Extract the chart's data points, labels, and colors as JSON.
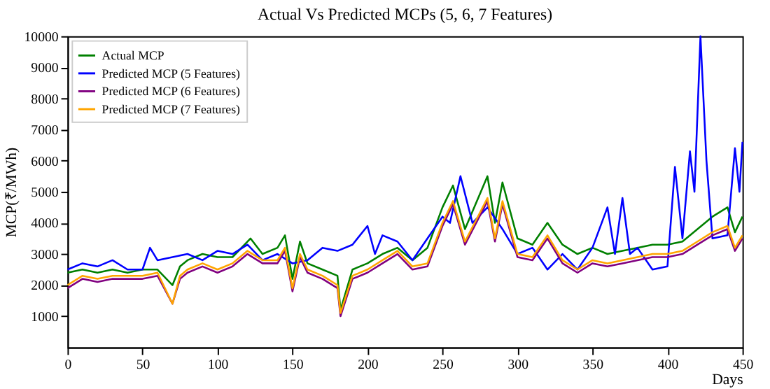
{
  "chart_data": {
    "type": "line",
    "title": "Actual Vs Predicted MCPs (5, 6, 7 Features)",
    "xlabel": "Days",
    "ylabel": "MCP(₹/MWh)",
    "xlim": [
      0,
      450
    ],
    "xticks": [
      0,
      50,
      100,
      150,
      200,
      250,
      300,
      350,
      400,
      450
    ],
    "ylim": [
      0,
      10000
    ],
    "yticks": [
      1000,
      2000,
      3000,
      4000,
      5000,
      6000,
      7000,
      8000,
      9000,
      10000
    ],
    "grid": false,
    "legend": "top left",
    "marker": "none",
    "line_style": "solid",
    "series": [
      {
        "name": "Actual MCP",
        "color": "#008000",
        "x": [
          0,
          10,
          20,
          30,
          40,
          50,
          60,
          70,
          75,
          80,
          90,
          100,
          110,
          122,
          130,
          140,
          145,
          150,
          155,
          160,
          170,
          180,
          182,
          190,
          200,
          210,
          220,
          230,
          240,
          250,
          257,
          265,
          280,
          285,
          290,
          300,
          310,
          320,
          330,
          340,
          350,
          360,
          370,
          380,
          390,
          400,
          410,
          420,
          430,
          440,
          445,
          450
        ],
        "values": [
          2400,
          2500,
          2400,
          2500,
          2400,
          2500,
          2500,
          2000,
          2600,
          2800,
          3000,
          2900,
          2900,
          3500,
          3000,
          3200,
          3600,
          2200,
          3400,
          2700,
          2500,
          2300,
          1200,
          2500,
          2700,
          3000,
          3200,
          2800,
          3200,
          4500,
          5200,
          3800,
          5500,
          4000,
          5300,
          3500,
          3300,
          4000,
          3300,
          3000,
          3200,
          3000,
          3100,
          3200,
          3300,
          3300,
          3400,
          3800,
          4200,
          4500,
          3700,
          4200
        ]
      },
      {
        "name": "Predicted MCP (5 Features)",
        "color": "#0000ff",
        "x": [
          0,
          10,
          20,
          30,
          40,
          50,
          55,
          60,
          70,
          80,
          90,
          100,
          110,
          120,
          130,
          140,
          150,
          160,
          170,
          180,
          190,
          200,
          205,
          210,
          220,
          230,
          240,
          250,
          255,
          262,
          270,
          280,
          290,
          300,
          310,
          320,
          330,
          340,
          350,
          360,
          365,
          370,
          375,
          380,
          390,
          400,
          405,
          410,
          415,
          418,
          422,
          426,
          430,
          440,
          445,
          448,
          450
        ],
        "values": [
          2500,
          2700,
          2600,
          2800,
          2500,
          2500,
          3200,
          2800,
          2900,
          3000,
          2800,
          3100,
          3000,
          3300,
          2800,
          3000,
          2700,
          2800,
          3200,
          3100,
          3300,
          3900,
          3000,
          3600,
          3400,
          2800,
          3500,
          4200,
          4000,
          5500,
          4000,
          4500,
          3800,
          3000,
          3200,
          2500,
          3000,
          2500,
          3200,
          4500,
          3000,
          4800,
          3000,
          3200,
          2500,
          2600,
          5800,
          3500,
          6300,
          5000,
          10000,
          6000,
          3500,
          3600,
          6400,
          5000,
          6600
        ]
      },
      {
        "name": "Predicted MCP (6 Features)",
        "color": "#800080",
        "x": [
          0,
          10,
          20,
          30,
          40,
          50,
          60,
          70,
          75,
          80,
          90,
          100,
          110,
          120,
          130,
          140,
          145,
          150,
          155,
          160,
          170,
          180,
          182,
          190,
          200,
          210,
          220,
          230,
          240,
          250,
          257,
          265,
          280,
          285,
          290,
          300,
          310,
          320,
          330,
          340,
          350,
          360,
          370,
          380,
          390,
          400,
          410,
          420,
          430,
          440,
          445,
          450
        ],
        "values": [
          1900,
          2200,
          2100,
          2200,
          2200,
          2200,
          2300,
          1400,
          2200,
          2400,
          2600,
          2400,
          2600,
          3000,
          2700,
          2700,
          3100,
          1800,
          2900,
          2400,
          2200,
          1900,
          1000,
          2200,
          2400,
          2700,
          3000,
          2500,
          2600,
          3900,
          4600,
          3300,
          4700,
          3400,
          4600,
          2900,
          2800,
          3500,
          2700,
          2400,
          2700,
          2600,
          2700,
          2800,
          2900,
          2900,
          3000,
          3300,
          3600,
          3800,
          3100,
          3500
        ]
      },
      {
        "name": "Predicted MCP (7 Features)",
        "color": "#ffa500",
        "x": [
          0,
          10,
          20,
          30,
          40,
          50,
          60,
          70,
          75,
          80,
          90,
          100,
          110,
          120,
          130,
          140,
          145,
          150,
          155,
          160,
          170,
          180,
          182,
          190,
          200,
          210,
          220,
          230,
          240,
          250,
          257,
          265,
          280,
          285,
          290,
          300,
          310,
          320,
          330,
          340,
          350,
          360,
          370,
          380,
          390,
          400,
          410,
          420,
          430,
          440,
          445,
          450
        ],
        "values": [
          2000,
          2300,
          2200,
          2300,
          2300,
          2300,
          2400,
          1400,
          2300,
          2500,
          2700,
          2500,
          2700,
          3100,
          2800,
          2800,
          3200,
          1900,
          3000,
          2500,
          2300,
          2000,
          1100,
          2300,
          2500,
          2800,
          3100,
          2600,
          2700,
          4000,
          4700,
          3400,
          4800,
          3500,
          4700,
          3000,
          2900,
          3600,
          2800,
          2500,
          2800,
          2700,
          2800,
          2900,
          3000,
          3000,
          3100,
          3400,
          3700,
          3900,
          3200,
          3600
        ]
      }
    ]
  }
}
